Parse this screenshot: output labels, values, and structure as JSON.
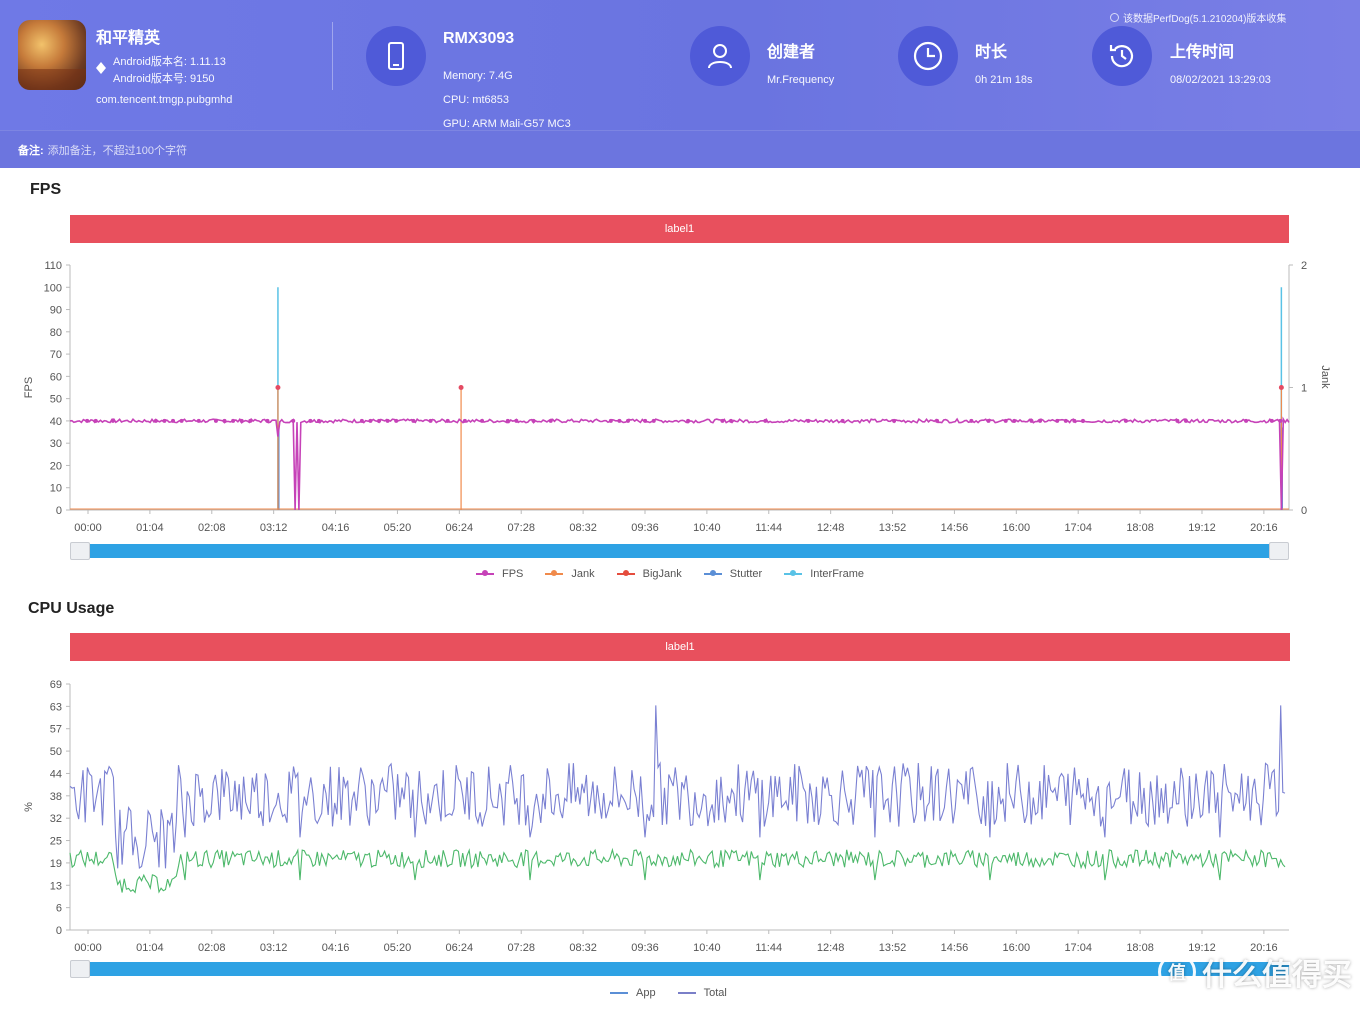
{
  "header": {
    "app": {
      "name": "和平精英",
      "android_version_name": "Android版本名: 1.11.13",
      "android_version_code": "Android版本号: 9150",
      "package": "com.tencent.tmgp.pubgmhd"
    },
    "device": {
      "model": "RMX3093",
      "memory": "Memory: 7.4G",
      "cpu": "CPU: mt6853",
      "gpu": "GPU: ARM Mali-G57 MC3"
    },
    "creator": {
      "title": "创建者",
      "value": "Mr.Frequency"
    },
    "duration": {
      "title": "时长",
      "value": "0h 21m 18s"
    },
    "upload_time": {
      "title": "上传时间",
      "value": "08/02/2021 13:29:03"
    },
    "version_note": "该数据PerfDog(5.1.210204)版本收集"
  },
  "remark": {
    "label": "备注:",
    "placeholder": "添加备注，不超过100个字符"
  },
  "fps_section": {
    "title": "FPS",
    "label_band": "label1",
    "legend": [
      {
        "name": "FPS",
        "color": "#c642b8"
      },
      {
        "name": "Jank",
        "color": "#f08a4b"
      },
      {
        "name": "BigJank",
        "color": "#e54d3e"
      },
      {
        "name": "Stutter",
        "color": "#5b8fd6"
      },
      {
        "name": "InterFrame",
        "color": "#59c2e6"
      }
    ]
  },
  "cpu_section": {
    "title": "CPU Usage",
    "label_band": "label1",
    "legend": [
      {
        "name": "App",
        "color": "#5b8fd6"
      },
      {
        "name": "Total",
        "color": "#7a7fc8"
      }
    ]
  },
  "chart_data": [
    {
      "type": "line",
      "title": "FPS",
      "ylabel": "FPS",
      "y2label": "Jank",
      "ylim": [
        0,
        110
      ],
      "y2lim": [
        0,
        2
      ],
      "yticks": [
        "0",
        "10",
        "20",
        "30",
        "40",
        "50",
        "60",
        "70",
        "80",
        "90",
        "100",
        "110"
      ],
      "y2ticks": [
        "0",
        "1",
        "2"
      ],
      "xticks": [
        "00:00",
        "01:04",
        "02:08",
        "03:12",
        "04:16",
        "05:20",
        "06:24",
        "07:28",
        "08:32",
        "09:36",
        "10:40",
        "11:44",
        "12:48",
        "13:52",
        "14:56",
        "16:00",
        "17:04",
        "18:08",
        "19:12",
        "20:16"
      ],
      "x_range_seconds": [
        0,
        1278
      ],
      "series": [
        {
          "name": "FPS",
          "color": "#c642b8",
          "baseline": 40,
          "dips": [
            [
              218,
              33
            ],
            [
              236,
              0
            ],
            [
              240,
              0
            ],
            [
              1270,
              0
            ]
          ]
        },
        {
          "name": "Jank",
          "color": "#f08a4b",
          "spikes": [
            [
              218,
              1
            ],
            [
              410,
              1
            ],
            [
              1270,
              1
            ]
          ]
        },
        {
          "name": "BigJank",
          "color": "#e54d3e",
          "spikes": []
        },
        {
          "name": "Stutter",
          "color": "#5b8fd6",
          "spikes": [
            [
              218,
              1
            ],
            [
              1270,
              1
            ]
          ]
        },
        {
          "name": "InterFrame",
          "color": "#59c2e6",
          "spikes": [
            [
              218,
              100
            ],
            [
              1270,
              100
            ]
          ]
        }
      ]
    },
    {
      "type": "line",
      "title": "CPU Usage",
      "ylabel": "%",
      "ylim": [
        0,
        69
      ],
      "yticks": [
        "0",
        "6",
        "13",
        "19",
        "25",
        "32",
        "38",
        "44",
        "50",
        "57",
        "63",
        "69"
      ],
      "xticks": [
        "00:00",
        "01:04",
        "02:08",
        "03:12",
        "04:16",
        "05:20",
        "06:24",
        "07:28",
        "08:32",
        "09:36",
        "10:40",
        "11:44",
        "12:48",
        "13:52",
        "14:56",
        "16:00",
        "17:04",
        "18:08",
        "19:12",
        "20:16"
      ],
      "series": [
        {
          "name": "App",
          "color": "#4cb86a",
          "mean": 20,
          "range": [
            8,
            30
          ]
        },
        {
          "name": "Total",
          "color": "#7a80d2",
          "mean": 38,
          "range": [
            15,
            63
          ]
        }
      ]
    }
  ]
}
